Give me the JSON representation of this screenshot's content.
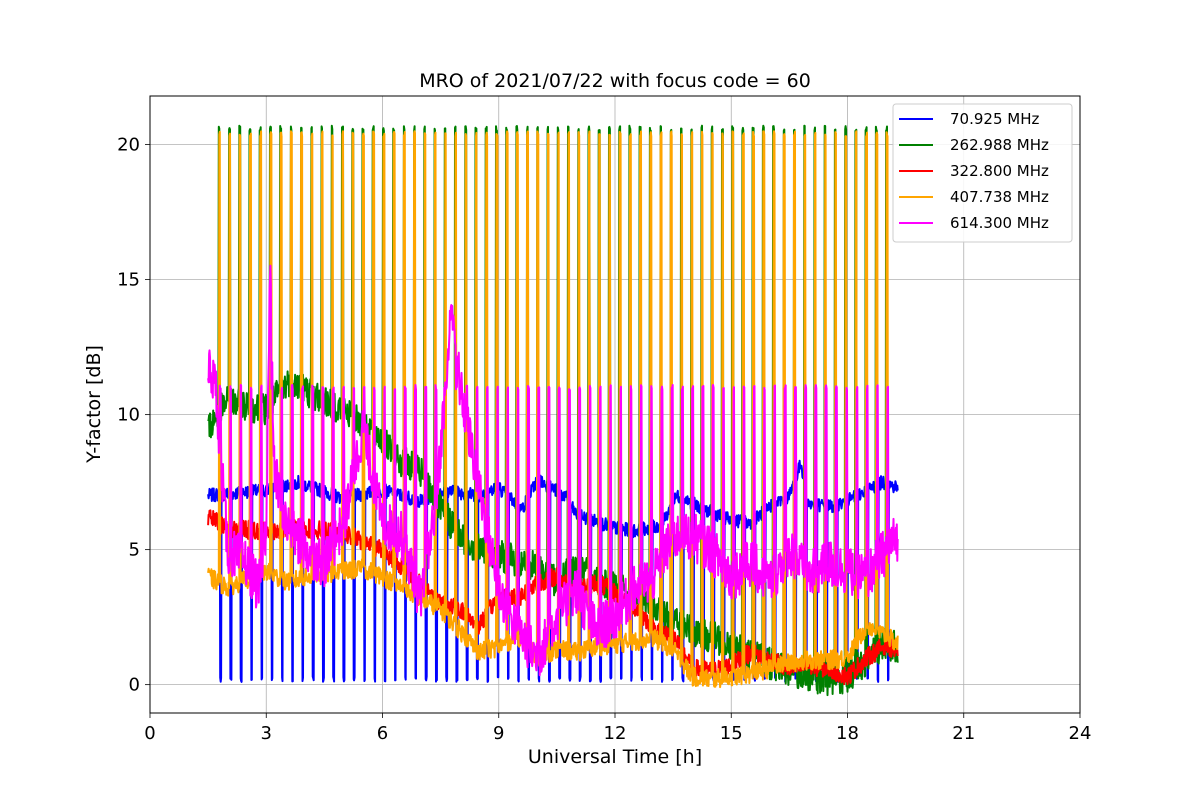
{
  "chart_data": {
    "type": "line",
    "title": "MRO of 2021/07/22 with focus code = 60",
    "xlabel": "Universal Time [h]",
    "ylabel": "Y-factor [dB]",
    "xlim": [
      0,
      24
    ],
    "ylim": [
      -1.05,
      21.8
    ],
    "xticks": [
      0,
      3,
      6,
      9,
      12,
      15,
      18,
      21,
      24
    ],
    "yticks": [
      0,
      5,
      10,
      15,
      20
    ],
    "grid": true,
    "legend_position": "top-right",
    "data_range_x": [
      1.5,
      19.3
    ],
    "periodic_spikes": {
      "start": 1.75,
      "end": 19.25,
      "period": 0.265
    },
    "series": [
      {
        "name": " 70.925 MHz",
        "color": "#0000ff",
        "baseline": [
          [
            1.5,
            7.0
          ],
          [
            3.0,
            7.2
          ],
          [
            3.8,
            7.5
          ],
          [
            5.0,
            6.9
          ],
          [
            6.0,
            7.2
          ],
          [
            7.0,
            6.8
          ],
          [
            7.6,
            7.2
          ],
          [
            8.5,
            7.0
          ],
          [
            9.0,
            7.3
          ],
          [
            9.6,
            6.5
          ],
          [
            10.0,
            7.6
          ],
          [
            10.7,
            7.0
          ],
          [
            11.0,
            6.3
          ],
          [
            12.0,
            5.8
          ],
          [
            12.5,
            5.7
          ],
          [
            13.2,
            5.9
          ],
          [
            13.6,
            7.0
          ],
          [
            14.3,
            6.5
          ],
          [
            15.0,
            6.1
          ],
          [
            15.5,
            6.0
          ],
          [
            16.0,
            6.6
          ],
          [
            16.5,
            7.0
          ],
          [
            16.8,
            8.2
          ],
          [
            17.0,
            6.7
          ],
          [
            17.6,
            6.6
          ],
          [
            18.0,
            6.8
          ],
          [
            18.5,
            7.2
          ],
          [
            18.9,
            7.5
          ],
          [
            19.3,
            7.3
          ]
        ],
        "spike_level": 0.2,
        "spike_direction": "down"
      },
      {
        "name": "262.988 MHz",
        "color": "#008000",
        "baseline": [
          [
            1.5,
            9.5
          ],
          [
            2.0,
            10.5
          ],
          [
            3.0,
            10.2
          ],
          [
            3.6,
            11.3
          ],
          [
            4.5,
            10.5
          ],
          [
            5.0,
            10.2
          ],
          [
            5.7,
            9.5
          ],
          [
            6.3,
            8.5
          ],
          [
            7.0,
            7.8
          ],
          [
            7.5,
            6.5
          ],
          [
            8.0,
            5.5
          ],
          [
            8.5,
            5.0
          ],
          [
            9.0,
            4.8
          ],
          [
            10.0,
            4.3
          ],
          [
            10.5,
            3.8
          ],
          [
            11.0,
            4.3
          ],
          [
            12.0,
            3.6
          ],
          [
            12.5,
            3.3
          ],
          [
            13.0,
            2.7
          ],
          [
            13.6,
            2.3
          ],
          [
            14.0,
            2.0
          ],
          [
            15.0,
            1.5
          ],
          [
            15.5,
            1.1
          ],
          [
            16.0,
            0.8
          ],
          [
            16.5,
            0.5
          ],
          [
            17.0,
            0.3
          ],
          [
            17.5,
            0.2
          ],
          [
            18.0,
            0.3
          ],
          [
            18.5,
            0.9
          ],
          [
            19.0,
            1.6
          ],
          [
            19.3,
            1.3
          ]
        ],
        "spike_level": 20.6,
        "spike_direction": "up"
      },
      {
        "name": "322.800 MHz",
        "color": "#ff0000",
        "baseline": [
          [
            1.5,
            6.2
          ],
          [
            2.0,
            5.8
          ],
          [
            3.0,
            5.7
          ],
          [
            4.0,
            5.8
          ],
          [
            5.0,
            5.6
          ],
          [
            6.0,
            5.0
          ],
          [
            6.8,
            4.0
          ],
          [
            7.5,
            3.0
          ],
          [
            8.0,
            2.8
          ],
          [
            8.5,
            2.2
          ],
          [
            9.0,
            3.3
          ],
          [
            9.5,
            3.2
          ],
          [
            10.0,
            3.8
          ],
          [
            10.5,
            4.0
          ],
          [
            11.0,
            3.5
          ],
          [
            11.5,
            3.8
          ],
          [
            12.0,
            3.4
          ],
          [
            12.5,
            2.9
          ],
          [
            13.0,
            2.1
          ],
          [
            13.5,
            1.8
          ],
          [
            14.0,
            0.6
          ],
          [
            14.5,
            0.5
          ],
          [
            15.0,
            0.7
          ],
          [
            15.5,
            1.2
          ],
          [
            16.0,
            0.9
          ],
          [
            16.5,
            0.6
          ],
          [
            17.0,
            0.7
          ],
          [
            17.5,
            0.6
          ],
          [
            18.0,
            0.3
          ],
          [
            18.5,
            1.0
          ],
          [
            19.0,
            1.5
          ],
          [
            19.3,
            1.2
          ]
        ],
        "spike_level": null,
        "spike_direction": "none"
      },
      {
        "name": "407.738 MHz",
        "color": "#ffa500",
        "baseline": [
          [
            1.5,
            4.0
          ],
          [
            2.0,
            3.6
          ],
          [
            2.5,
            3.9
          ],
          [
            3.0,
            4.2
          ],
          [
            3.5,
            3.8
          ],
          [
            4.5,
            4.1
          ],
          [
            5.5,
            4.3
          ],
          [
            6.0,
            4.0
          ],
          [
            6.5,
            3.6
          ],
          [
            7.0,
            3.2
          ],
          [
            7.5,
            2.8
          ],
          [
            8.0,
            2.0
          ],
          [
            8.5,
            1.2
          ],
          [
            9.0,
            1.4
          ],
          [
            9.5,
            1.8
          ],
          [
            10.0,
            1.0
          ],
          [
            10.5,
            1.3
          ],
          [
            11.0,
            1.2
          ],
          [
            11.5,
            1.4
          ],
          [
            12.0,
            1.5
          ],
          [
            12.5,
            1.6
          ],
          [
            13.0,
            1.7
          ],
          [
            13.5,
            1.3
          ],
          [
            14.0,
            0.3
          ],
          [
            14.5,
            0.2
          ],
          [
            15.0,
            0.3
          ],
          [
            15.5,
            0.4
          ],
          [
            16.0,
            0.6
          ],
          [
            16.5,
            0.8
          ],
          [
            17.0,
            0.9
          ],
          [
            17.5,
            0.9
          ],
          [
            18.0,
            1.0
          ],
          [
            18.5,
            2.2
          ],
          [
            19.0,
            1.8
          ],
          [
            19.3,
            1.5
          ]
        ],
        "spike_level": 20.4,
        "spike_direction": "up"
      },
      {
        "name": "614.300 MHz",
        "color": "#ff00ff",
        "baseline": [
          [
            1.5,
            11.8
          ],
          [
            1.7,
            11.0
          ],
          [
            2.0,
            5.0
          ],
          [
            2.5,
            4.5
          ],
          [
            2.8,
            3.5
          ],
          [
            3.0,
            6.0
          ],
          [
            3.1,
            15.6
          ],
          [
            3.2,
            8.0
          ],
          [
            3.5,
            6.0
          ],
          [
            4.0,
            5.0
          ],
          [
            4.5,
            4.5
          ],
          [
            5.0,
            6.0
          ],
          [
            5.5,
            9.5
          ],
          [
            6.0,
            6.0
          ],
          [
            6.5,
            5.5
          ],
          [
            7.0,
            3.0
          ],
          [
            7.4,
            7.0
          ],
          [
            7.8,
            14.2
          ],
          [
            8.0,
            11.0
          ],
          [
            8.4,
            8.0
          ],
          [
            8.8,
            5.0
          ],
          [
            9.0,
            3.5
          ],
          [
            9.5,
            2.0
          ],
          [
            10.0,
            1.0
          ],
          [
            10.5,
            2.5
          ],
          [
            11.0,
            3.5
          ],
          [
            11.5,
            2.0
          ],
          [
            12.0,
            2.5
          ],
          [
            12.5,
            3.5
          ],
          [
            13.0,
            4.0
          ],
          [
            13.5,
            5.5
          ],
          [
            14.0,
            5.5
          ],
          [
            14.5,
            5.0
          ],
          [
            15.0,
            4.0
          ],
          [
            15.5,
            4.5
          ],
          [
            16.0,
            3.8
          ],
          [
            16.5,
            5.0
          ],
          [
            17.0,
            4.0
          ],
          [
            17.5,
            4.5
          ],
          [
            18.0,
            4.2
          ],
          [
            18.5,
            4.0
          ],
          [
            19.0,
            5.0
          ],
          [
            19.3,
            5.5
          ]
        ],
        "spike_level": 11.0,
        "spike_direction": "up"
      }
    ]
  }
}
